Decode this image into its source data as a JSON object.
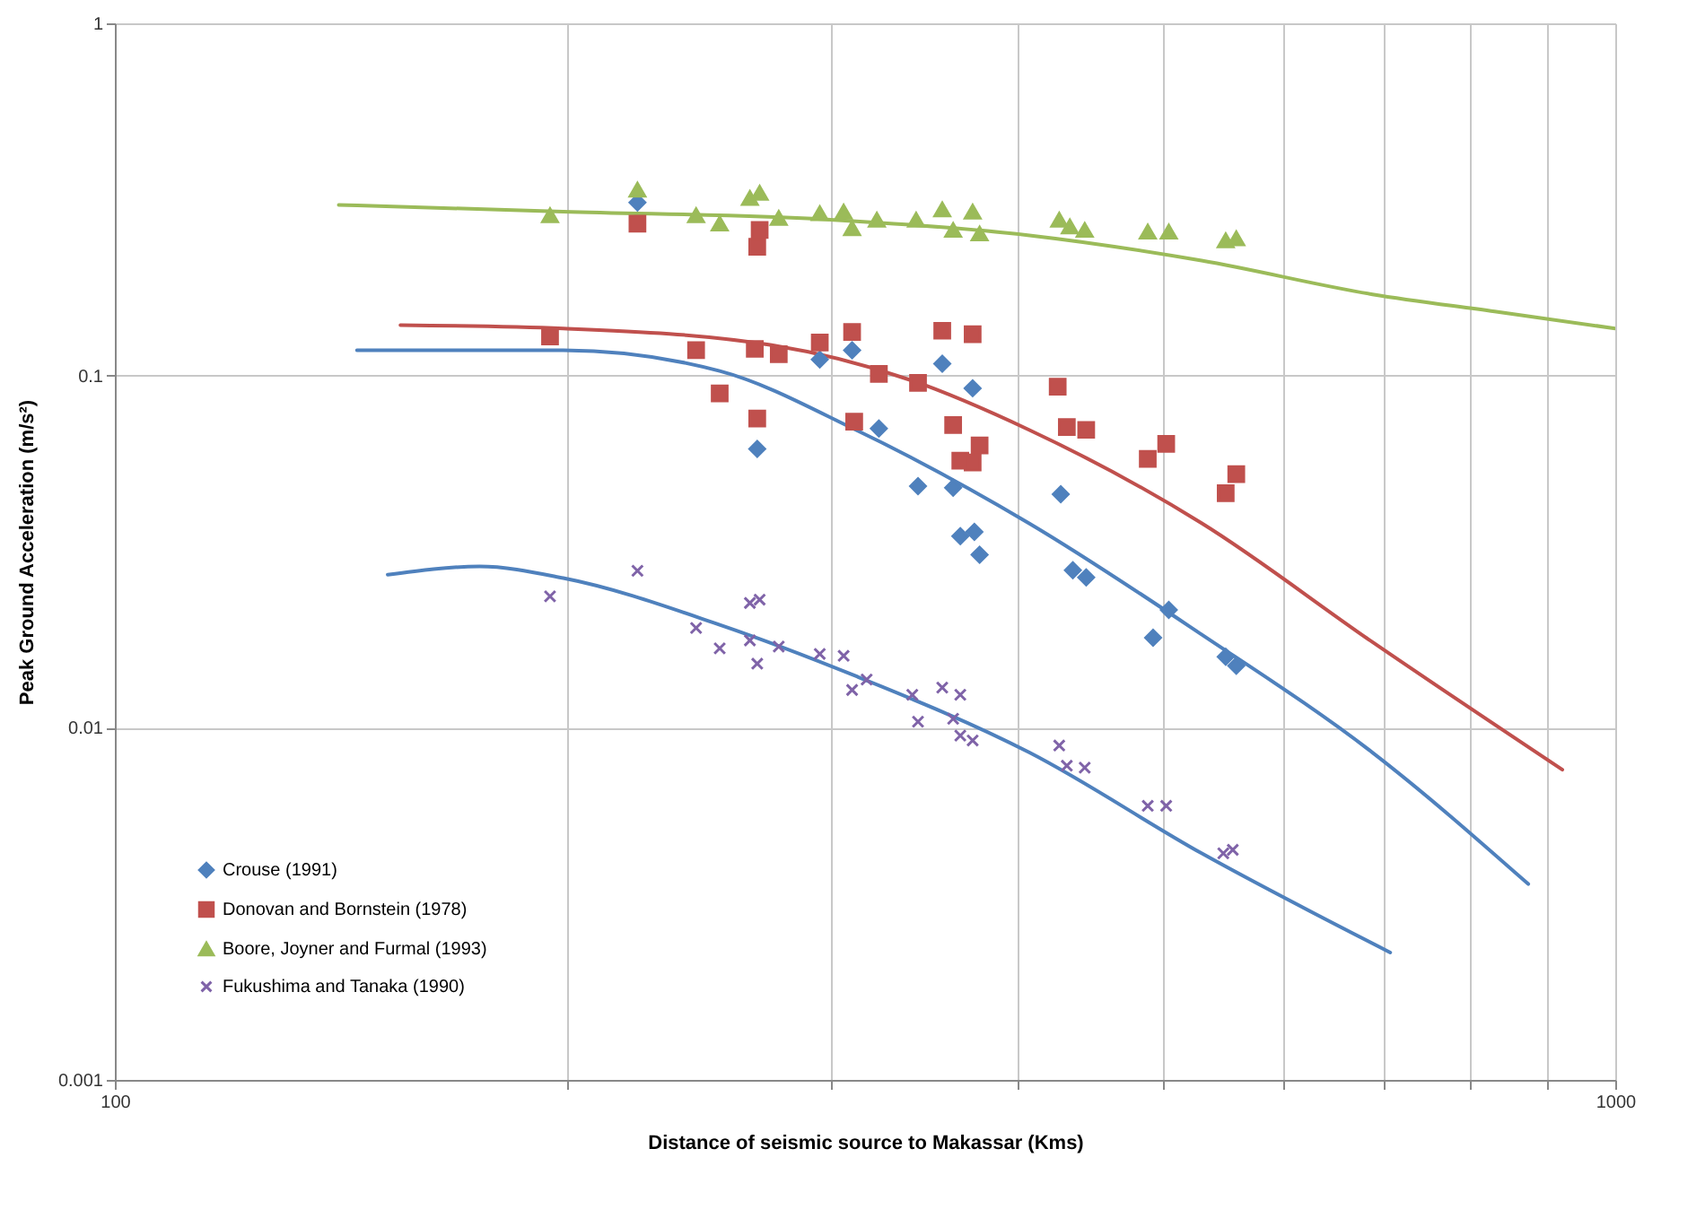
{
  "chart_data": {
    "type": "scatter",
    "xlabel": "Distance of seismic source to Makassar (Kms)",
    "ylabel": "Peak Ground Acceleration (m/s²)",
    "log": "xy",
    "grid": true,
    "legend": "bottom left",
    "xlim": [
      100,
      1000
    ],
    "xticks": [
      100,
      {
        "value": 200,
        "label": null
      },
      {
        "value": 300,
        "label": null
      },
      {
        "value": 400,
        "label": null
      },
      {
        "value": 500,
        "label": null
      },
      {
        "value": 600,
        "label": null
      },
      {
        "value": 700,
        "label": null
      },
      {
        "value": 800,
        "label": null
      },
      {
        "value": 900,
        "label": null
      },
      1000
    ],
    "ylim": [
      0.001,
      1
    ],
    "yticks": [
      0.001,
      0.01,
      0.1,
      1
    ],
    "series": [
      {
        "type": "line",
        "color": "#9bbb59",
        "x": [
          141,
          199,
          300,
          407,
          530,
          689,
          831,
          1000
        ],
        "values": [
          0.305,
          0.292,
          0.277,
          0.25,
          0.212,
          0.17,
          0.152,
          0.136
        ]
      },
      {
        "type": "line",
        "color": "#c0504d",
        "x": [
          155,
          199,
          274,
          338,
          407,
          530,
          689,
          922
        ],
        "values": [
          0.139,
          0.136,
          0.122,
          0.0975,
          0.07,
          0.0381,
          0.0175,
          0.0076
        ]
      },
      {
        "type": "line",
        "color": "#4f81bd",
        "x": [
          145,
          199,
          253,
          312,
          407,
          530,
          689,
          875
        ],
        "values": [
          0.118,
          0.118,
          0.103,
          0.07,
          0.038,
          0.0184,
          0.0085,
          0.0036
        ]
      },
      {
        "type": "line",
        "color": "#4f81bd",
        "x": [
          152,
          175,
          199,
          253,
          312,
          407,
          530,
          708
        ],
        "values": [
          0.0272,
          0.0287,
          0.0266,
          0.0196,
          0.014,
          0.0085,
          0.0044,
          0.0023
        ]
      },
      {
        "name": "Crouse (1991)",
        "marker": "diamond",
        "color": "#4f81bd",
        "x": [
          223,
          295,
          310,
          356,
          373,
          323,
          268,
          343,
          362,
          366,
          374,
          377,
          427,
          435,
          444,
          492,
          504,
          550,
          559
        ],
        "values": [
          0.31,
          0.111,
          0.118,
          0.108,
          0.092,
          0.0707,
          0.0619,
          0.0485,
          0.048,
          0.035,
          0.036,
          0.031,
          0.046,
          0.028,
          0.0267,
          0.018,
          0.0216,
          0.0159,
          0.015
        ]
      },
      {
        "name": "Donovan and Bornstein (1978)",
        "marker": "square",
        "color": "#c0504d",
        "x": [
          195,
          223,
          244,
          253,
          267,
          268,
          269,
          268,
          277,
          295,
          310,
          311,
          323,
          343,
          356,
          362,
          373,
          366,
          377,
          373,
          425,
          431,
          444,
          488,
          502,
          550,
          559
        ],
        "values": [
          0.129,
          0.27,
          0.118,
          0.089,
          0.119,
          0.232,
          0.259,
          0.0755,
          0.115,
          0.124,
          0.133,
          0.074,
          0.101,
          0.0953,
          0.134,
          0.0723,
          0.131,
          0.0573,
          0.0633,
          0.0566,
          0.093,
          0.0714,
          0.0701,
          0.058,
          0.064,
          0.0463,
          0.0525
        ]
      },
      {
        "name": "Boore, Joyner and Furmal (1993)",
        "marker": "triangle",
        "color": "#9bbb59",
        "x": [
          195,
          223,
          244,
          253,
          265,
          269,
          277,
          295,
          306,
          310,
          322,
          342,
          356,
          362,
          373,
          377,
          426,
          433,
          443,
          488,
          504,
          550,
          559
        ],
        "values": [
          0.285,
          0.337,
          0.285,
          0.27,
          0.319,
          0.33,
          0.28,
          0.289,
          0.292,
          0.262,
          0.277,
          0.277,
          0.296,
          0.259,
          0.292,
          0.253,
          0.277,
          0.265,
          0.259,
          0.256,
          0.256,
          0.242,
          0.245
        ]
      },
      {
        "name": "Fukushima and Tanaka (1990)",
        "marker": "cross",
        "color": "#7f63a8",
        "x": [
          195,
          223,
          244,
          253,
          265,
          269,
          265,
          268,
          277,
          295,
          306,
          310,
          317,
          340,
          343,
          356,
          366,
          362,
          366,
          373,
          426,
          431,
          443,
          488,
          502,
          548,
          556
        ],
        "values": [
          0.0236,
          0.0279,
          0.0192,
          0.0168,
          0.0226,
          0.0231,
          0.0177,
          0.0152,
          0.017,
          0.0162,
          0.016,
          0.0128,
          0.0137,
          0.0124,
          0.0104,
          0.013,
          0.0124,
          0.0106,
          0.0095,
          0.0092,
          0.0089,
          0.0078,
          0.0077,
          0.006,
          0.006,
          0.0044,
          0.0045
        ]
      }
    ]
  }
}
